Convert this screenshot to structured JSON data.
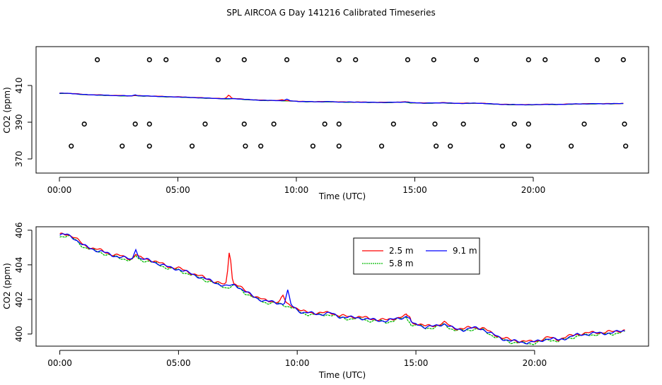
{
  "chart_data": {
    "title": "SPL AIRCOA G  Day 141216  Calibrated Timeseries",
    "colors": {
      "s25": "#ff0000",
      "s58": "#00bb00",
      "s91": "#0000ff",
      "points": "#000000"
    },
    "top": {
      "type": "scatter+line",
      "xlabel": "Time (UTC)",
      "ylabel": "CO2 (ppm)",
      "xlim": [
        0,
        24
      ],
      "ylim": [
        364,
        430
      ],
      "xticks": [
        0,
        5,
        10,
        15,
        20
      ],
      "xtick_labels": [
        "00:00",
        "05:00",
        "10:00",
        "15:00",
        "20:00"
      ],
      "yticks": [
        370,
        390,
        410
      ],
      "ytick_labels": [
        "370",
        "390",
        "410"
      ],
      "markers_y424": [
        1.6,
        3.8,
        4.5,
        6.7,
        7.8,
        9.6,
        11.8,
        12.5,
        14.7,
        15.8,
        17.6,
        19.8,
        20.5,
        22.7,
        23.8
      ],
      "markers_y389": [
        1.05,
        3.2,
        3.8,
        6.15,
        7.8,
        9.05,
        11.2,
        11.8,
        14.1,
        15.85,
        17.05,
        19.2,
        19.8,
        22.15,
        23.85
      ],
      "markers_y377": [
        0.5,
        2.65,
        3.8,
        5.6,
        7.85,
        8.5,
        10.7,
        11.8,
        13.6,
        15.9,
        16.5,
        18.7,
        19.8,
        21.6,
        23.9
      ]
    },
    "bottom": {
      "type": "line",
      "xlabel": "Time (UTC)",
      "ylabel": "CO2 (ppm)",
      "xlim": [
        -1,
        24.8
      ],
      "ylim": [
        399.3,
        406.2
      ],
      "xticks": [
        0,
        5,
        10,
        15,
        20
      ],
      "xtick_labels": [
        "00:00",
        "05:00",
        "10:00",
        "15:00",
        "20:00"
      ],
      "yticks": [
        400,
        402,
        404,
        406
      ],
      "ytick_labels": [
        "400",
        "402",
        "404",
        "406"
      ],
      "base_x": [
        0,
        0.3,
        0.6,
        1,
        1.4,
        1.8,
        2.2,
        2.6,
        3,
        3.4,
        3.8,
        4.2,
        4.6,
        5,
        5.4,
        5.8,
        6.2,
        6.6,
        7,
        7.4,
        7.8,
        8.2,
        8.6,
        9,
        9.4,
        9.8,
        10.2,
        10.6,
        11,
        11.4,
        11.8,
        12.2,
        12.6,
        13,
        13.4,
        13.8,
        14.2,
        14.6,
        14.8,
        15,
        15.4,
        15.8,
        16.2,
        16.6,
        17,
        17.4,
        17.8,
        18.2,
        18.6,
        19,
        19.4,
        19.8,
        20.2,
        20.6,
        21,
        21.4,
        21.8,
        22.2,
        22.6,
        23,
        23.4,
        23.8
      ],
      "base_y": [
        405.7,
        405.75,
        405.55,
        405.1,
        404.9,
        404.75,
        404.55,
        404.45,
        404.3,
        404.35,
        404.25,
        404.05,
        403.85,
        403.75,
        403.55,
        403.35,
        403.15,
        402.95,
        402.75,
        402.85,
        402.45,
        402.15,
        401.9,
        401.85,
        401.75,
        401.6,
        401.25,
        401.2,
        401.15,
        401.2,
        401.0,
        400.95,
        400.95,
        400.85,
        400.8,
        400.75,
        400.9,
        401.0,
        400.45,
        400.6,
        400.4,
        400.45,
        400.6,
        400.3,
        400.25,
        400.35,
        400.3,
        400.0,
        399.75,
        399.6,
        399.55,
        399.5,
        399.6,
        399.75,
        399.65,
        399.8,
        399.95,
        400.0,
        400.05,
        400.05,
        400.1,
        400.2
      ],
      "series": [
        {
          "name": "2.5 m",
          "offset": 0.05,
          "spikes": [
            [
              3.2,
              0.25
            ],
            [
              7.15,
              2.0
            ],
            [
              9.4,
              0.4
            ],
            [
              14.75,
              0.35
            ]
          ]
        },
        {
          "name": "5.8 m",
          "offset": -0.06,
          "spikes": [
            [
              3.2,
              0.25
            ],
            [
              14.75,
              0.2
            ]
          ]
        },
        {
          "name": "9.1 m",
          "offset": 0.0,
          "spikes": [
            [
              3.2,
              0.65
            ],
            [
              9.6,
              0.8
            ],
            [
              14.75,
              0.3
            ]
          ]
        }
      ],
      "legend": {
        "position": "top-center",
        "entries": [
          "2.5 m",
          "9.1 m",
          "5.8 m"
        ]
      }
    }
  }
}
